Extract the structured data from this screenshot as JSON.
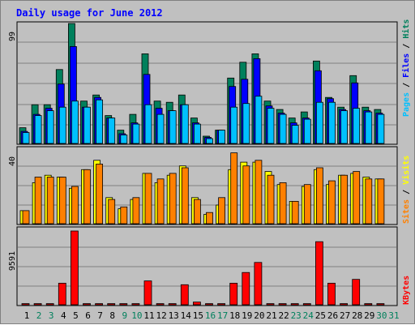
{
  "title": "Daily usage for June 2012",
  "colors": {
    "hits": "#00805c",
    "files": "#0000ff",
    "pages": "#00c0ff",
    "visits": "#ffff00",
    "sites": "#ff8000",
    "kbytes": "#ff0000",
    "background": "#c0c0c0",
    "weekday_label": "#000000",
    "weekend_label": "#00805c"
  },
  "axis_labels": {
    "top_max": "99",
    "mid_max": "40",
    "bottom_max": "9591",
    "top_pages": "Pages",
    "top_sep1": " / ",
    "top_files": "Files",
    "top_sep2": " / ",
    "top_hits": "Hits",
    "mid_sites": "Sites",
    "mid_sep": " / ",
    "mid_visits": "Visits",
    "bottom_kbytes": "KBytes"
  },
  "chart_data": [
    {
      "type": "bar",
      "title": "Daily usage for June 2012",
      "ylabel": "Pages / Files / Hits",
      "ylim": [
        0,
        99
      ],
      "categories": [
        "1",
        "2",
        "3",
        "4",
        "5",
        "6",
        "7",
        "8",
        "9",
        "10",
        "11",
        "12",
        "13",
        "14",
        "15",
        "16",
        "17",
        "18",
        "19",
        "20",
        "21",
        "22",
        "23",
        "24",
        "25",
        "26",
        "27",
        "28",
        "29",
        "30",
        "31"
      ],
      "weekend_days": [
        2,
        3,
        9,
        10,
        16,
        17,
        23,
        24,
        30,
        31
      ],
      "series": [
        {
          "name": "Hits",
          "values": [
            13,
            32,
            32,
            61,
            99,
            35,
            40,
            23,
            11,
            24,
            74,
            35,
            34,
            40,
            21,
            6,
            11,
            54,
            67,
            74,
            35,
            28,
            21,
            26,
            68,
            38,
            30,
            56,
            30,
            28,
            0
          ]
        },
        {
          "name": "Files",
          "values": [
            10,
            24,
            29,
            49,
            80,
            30,
            38,
            21,
            8,
            17,
            57,
            29,
            27,
            32,
            17,
            5,
            11,
            47,
            53,
            70,
            31,
            25,
            17,
            21,
            60,
            37,
            28,
            50,
            27,
            25,
            0
          ]
        },
        {
          "name": "Pages",
          "values": [
            9,
            23,
            27,
            30,
            35,
            30,
            36,
            21,
            7,
            16,
            32,
            24,
            27,
            32,
            16,
            4,
            11,
            30,
            33,
            39,
            29,
            24,
            15,
            20,
            34,
            34,
            27,
            29,
            26,
            24,
            0
          ]
        }
      ]
    },
    {
      "type": "bar",
      "ylabel": "Sites / Visits",
      "ylim": [
        0,
        40
      ],
      "categories": [
        "1",
        "2",
        "3",
        "4",
        "5",
        "6",
        "7",
        "8",
        "9",
        "10",
        "11",
        "12",
        "13",
        "14",
        "15",
        "16",
        "17",
        "18",
        "19",
        "20",
        "21",
        "22",
        "23",
        "24",
        "25",
        "26",
        "27",
        "28",
        "29",
        "30",
        "31"
      ],
      "series": [
        {
          "name": "Visits",
          "values": [
            7,
            22,
            26,
            25,
            19,
            29,
            34,
            14,
            8,
            13,
            27,
            22,
            26,
            31,
            14,
            5,
            10,
            29,
            33,
            33,
            28,
            21,
            12,
            20,
            29,
            21,
            26,
            27,
            25,
            24,
            0
          ]
        },
        {
          "name": "Sites",
          "values": [
            7,
            25,
            25,
            25,
            20,
            29,
            32,
            13,
            9,
            14,
            27,
            24,
            27,
            30,
            13,
            6,
            14,
            38,
            31,
            34,
            26,
            22,
            12,
            21,
            30,
            23,
            26,
            28,
            24,
            24,
            0
          ]
        }
      ]
    },
    {
      "type": "bar",
      "ylabel": "KBytes",
      "ylim": [
        0,
        9591
      ],
      "categories": [
        "1",
        "2",
        "3",
        "4",
        "5",
        "6",
        "7",
        "8",
        "9",
        "10",
        "11",
        "12",
        "13",
        "14",
        "15",
        "16",
        "17",
        "18",
        "19",
        "20",
        "21",
        "22",
        "23",
        "24",
        "25",
        "26",
        "27",
        "28",
        "29",
        "30",
        "31"
      ],
      "series": [
        {
          "name": "KBytes",
          "values": [
            150,
            150,
            150,
            2800,
            9591,
            150,
            150,
            150,
            150,
            150,
            3100,
            150,
            150,
            2600,
            350,
            150,
            150,
            2800,
            4200,
            5500,
            150,
            150,
            150,
            150,
            8200,
            2800,
            150,
            3300,
            150,
            150,
            0
          ]
        }
      ]
    }
  ]
}
